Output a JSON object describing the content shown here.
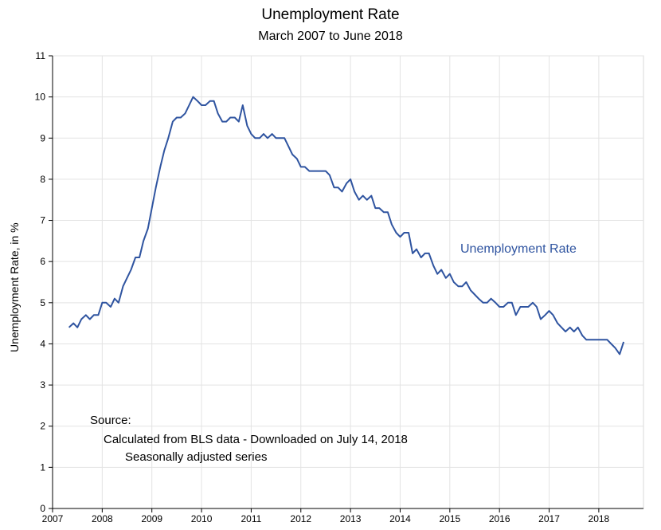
{
  "chart_data": {
    "type": "line",
    "title": "Unemployment Rate",
    "subtitle": "March 2007 to June 2018",
    "xlabel": "",
    "ylabel": "Unemployment Rate, in %",
    "xlim": [
      2007,
      2018.9
    ],
    "ylim": [
      0,
      11
    ],
    "x_ticks": [
      2007,
      2008,
      2009,
      2010,
      2011,
      2012,
      2013,
      2014,
      2015,
      2016,
      2017,
      2018
    ],
    "y_ticks": [
      0,
      1,
      2,
      3,
      4,
      5,
      6,
      7,
      8,
      9,
      10,
      11
    ],
    "grid": true,
    "series": [
      {
        "name": "Unemployment Rate",
        "color": "#2f54a0",
        "points": [
          [
            2007.33,
            4.4
          ],
          [
            2007.42,
            4.5
          ],
          [
            2007.5,
            4.4
          ],
          [
            2007.58,
            4.6
          ],
          [
            2007.67,
            4.7
          ],
          [
            2007.75,
            4.6
          ],
          [
            2007.83,
            4.7
          ],
          [
            2007.92,
            4.7
          ],
          [
            2008.0,
            5.0
          ],
          [
            2008.08,
            5.0
          ],
          [
            2008.17,
            4.9
          ],
          [
            2008.25,
            5.1
          ],
          [
            2008.33,
            5.0
          ],
          [
            2008.42,
            5.4
          ],
          [
            2008.5,
            5.6
          ],
          [
            2008.58,
            5.8
          ],
          [
            2008.67,
            6.1
          ],
          [
            2008.75,
            6.1
          ],
          [
            2008.83,
            6.5
          ],
          [
            2008.92,
            6.8
          ],
          [
            2009.0,
            7.3
          ],
          [
            2009.08,
            7.8
          ],
          [
            2009.17,
            8.3
          ],
          [
            2009.25,
            8.7
          ],
          [
            2009.33,
            9.0
          ],
          [
            2009.42,
            9.4
          ],
          [
            2009.5,
            9.5
          ],
          [
            2009.58,
            9.5
          ],
          [
            2009.67,
            9.6
          ],
          [
            2009.75,
            9.8
          ],
          [
            2009.83,
            10.0
          ],
          [
            2009.92,
            9.9
          ],
          [
            2010.0,
            9.8
          ],
          [
            2010.08,
            9.8
          ],
          [
            2010.17,
            9.9
          ],
          [
            2010.25,
            9.9
          ],
          [
            2010.33,
            9.6
          ],
          [
            2010.42,
            9.4
          ],
          [
            2010.5,
            9.4
          ],
          [
            2010.58,
            9.5
          ],
          [
            2010.67,
            9.5
          ],
          [
            2010.75,
            9.4
          ],
          [
            2010.83,
            9.8
          ],
          [
            2010.92,
            9.3
          ],
          [
            2011.0,
            9.1
          ],
          [
            2011.08,
            9.0
          ],
          [
            2011.17,
            9.0
          ],
          [
            2011.25,
            9.1
          ],
          [
            2011.33,
            9.0
          ],
          [
            2011.42,
            9.1
          ],
          [
            2011.5,
            9.0
          ],
          [
            2011.58,
            9.0
          ],
          [
            2011.67,
            9.0
          ],
          [
            2011.75,
            8.8
          ],
          [
            2011.83,
            8.6
          ],
          [
            2011.92,
            8.5
          ],
          [
            2012.0,
            8.3
          ],
          [
            2012.08,
            8.3
          ],
          [
            2012.17,
            8.2
          ],
          [
            2012.25,
            8.2
          ],
          [
            2012.33,
            8.2
          ],
          [
            2012.42,
            8.2
          ],
          [
            2012.5,
            8.2
          ],
          [
            2012.58,
            8.1
          ],
          [
            2012.67,
            7.8
          ],
          [
            2012.75,
            7.8
          ],
          [
            2012.83,
            7.7
          ],
          [
            2012.92,
            7.9
          ],
          [
            2013.0,
            8.0
          ],
          [
            2013.08,
            7.7
          ],
          [
            2013.17,
            7.5
          ],
          [
            2013.25,
            7.6
          ],
          [
            2013.33,
            7.5
          ],
          [
            2013.42,
            7.6
          ],
          [
            2013.5,
            7.3
          ],
          [
            2013.58,
            7.3
          ],
          [
            2013.67,
            7.2
          ],
          [
            2013.75,
            7.2
          ],
          [
            2013.83,
            6.9
          ],
          [
            2013.92,
            6.7
          ],
          [
            2014.0,
            6.6
          ],
          [
            2014.08,
            6.7
          ],
          [
            2014.17,
            6.7
          ],
          [
            2014.25,
            6.2
          ],
          [
            2014.33,
            6.3
          ],
          [
            2014.42,
            6.1
          ],
          [
            2014.5,
            6.2
          ],
          [
            2014.58,
            6.2
          ],
          [
            2014.67,
            5.9
          ],
          [
            2014.75,
            5.7
          ],
          [
            2014.83,
            5.8
          ],
          [
            2014.92,
            5.6
          ],
          [
            2015.0,
            5.7
          ],
          [
            2015.08,
            5.5
          ],
          [
            2015.17,
            5.4
          ],
          [
            2015.25,
            5.4
          ],
          [
            2015.33,
            5.5
          ],
          [
            2015.42,
            5.3
          ],
          [
            2015.5,
            5.2
          ],
          [
            2015.58,
            5.1
          ],
          [
            2015.67,
            5.0
          ],
          [
            2015.75,
            5.0
          ],
          [
            2015.83,
            5.1
          ],
          [
            2015.92,
            5.0
          ],
          [
            2016.0,
            4.9
          ],
          [
            2016.08,
            4.9
          ],
          [
            2016.17,
            5.0
          ],
          [
            2016.25,
            5.0
          ],
          [
            2016.33,
            4.7
          ],
          [
            2016.42,
            4.9
          ],
          [
            2016.5,
            4.9
          ],
          [
            2016.58,
            4.9
          ],
          [
            2016.67,
            5.0
          ],
          [
            2016.75,
            4.9
          ],
          [
            2016.83,
            4.6
          ],
          [
            2016.92,
            4.7
          ],
          [
            2017.0,
            4.8
          ],
          [
            2017.08,
            4.7
          ],
          [
            2017.17,
            4.5
          ],
          [
            2017.25,
            4.4
          ],
          [
            2017.33,
            4.3
          ],
          [
            2017.42,
            4.4
          ],
          [
            2017.5,
            4.3
          ],
          [
            2017.58,
            4.4
          ],
          [
            2017.67,
            4.2
          ],
          [
            2017.75,
            4.1
          ],
          [
            2017.83,
            4.1
          ],
          [
            2017.92,
            4.1
          ],
          [
            2018.0,
            4.1
          ],
          [
            2018.08,
            4.1
          ],
          [
            2018.17,
            4.1
          ],
          [
            2018.25,
            4.0
          ],
          [
            2018.33,
            3.9
          ],
          [
            2018.42,
            3.75
          ],
          [
            2018.5,
            4.05
          ]
        ]
      }
    ],
    "annotations": {
      "series_label": "Unemployment Rate",
      "source_lines": [
        "Source:",
        "Calculated from BLS data - Downloaded on July 14, 2018",
        "Seasonally adjusted series"
      ]
    }
  }
}
